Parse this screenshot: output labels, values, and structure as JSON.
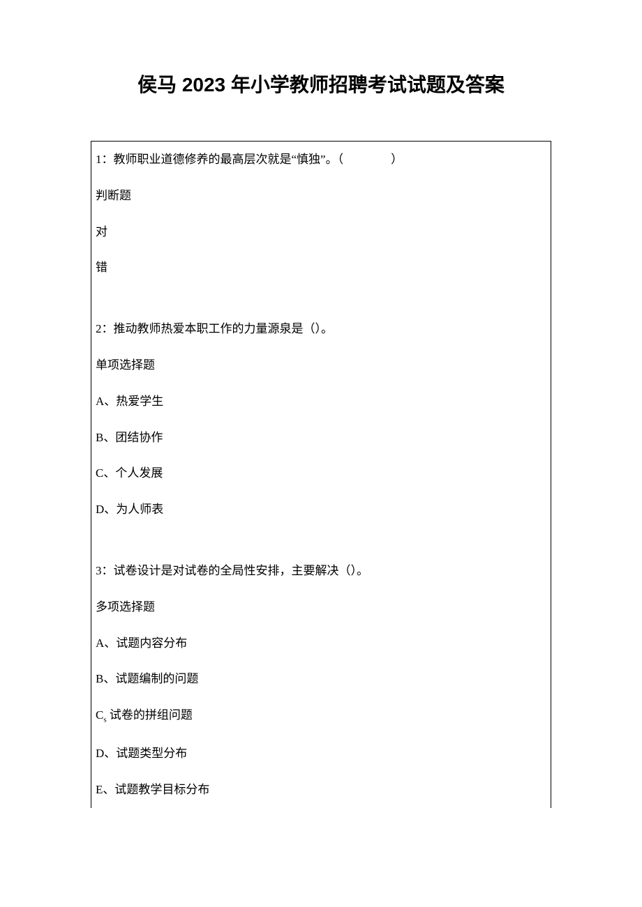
{
  "title": "侯马 2023 年小学教师招聘考试试题及答案",
  "questions": [
    {
      "prompt": "1：教师职业道德修养的最高层次就是“慎独”。（　　　　）",
      "type_label": "判断题",
      "options": [
        "对",
        "错"
      ]
    },
    {
      "prompt": "2：推动教师热爱本职工作的力量源泉是（）。",
      "type_label": "单项选择题",
      "options": [
        "A、热爱学生",
        "B、团结协作",
        "C、个人发展",
        "D、为人师表"
      ]
    },
    {
      "prompt": "3：试卷设计是对试卷的全局性安排，主要解决（）。",
      "type_label": "多项选择题",
      "options": [
        "A、试题内容分布",
        "B、试题编制的问题",
        "C_s 试卷的拼组问题",
        "D、试题类型分布",
        "E、试题教学目标分布"
      ]
    }
  ]
}
